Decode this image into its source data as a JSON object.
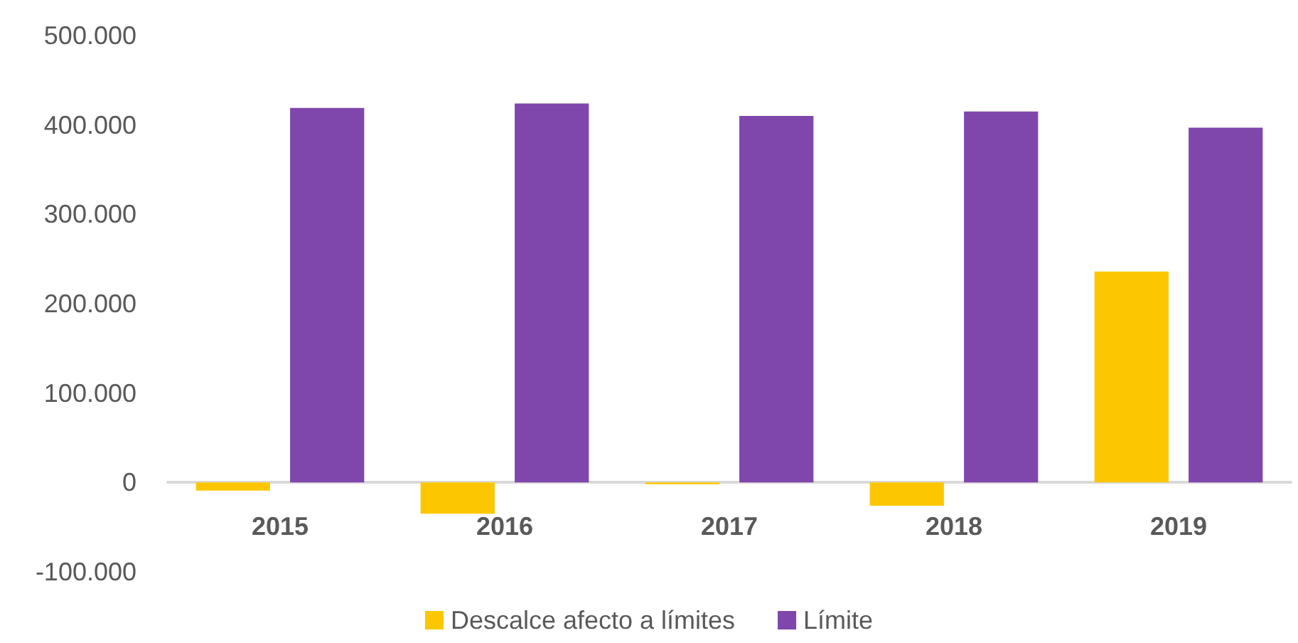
{
  "chart_data": {
    "type": "bar",
    "categories": [
      "2015",
      "2016",
      "2017",
      "2018",
      "2019"
    ],
    "series": [
      {
        "name": "Descalce afecto a límites",
        "color": "#fcc700",
        "values": [
          -9000,
          -35000,
          -2000,
          -26000,
          236000
        ]
      },
      {
        "name": "Límite",
        "color": "#7f47ab",
        "values": [
          419000,
          424000,
          410000,
          415000,
          397000
        ]
      }
    ],
    "ylim": [
      -100000,
      500000
    ],
    "yticks": [
      {
        "value": -100000,
        "label": "-100.000"
      },
      {
        "value": 0,
        "label": "0"
      },
      {
        "value": 100000,
        "label": "100.000"
      },
      {
        "value": 200000,
        "label": "200.000"
      },
      {
        "value": 300000,
        "label": "300.000"
      },
      {
        "value": 400000,
        "label": "400.000"
      },
      {
        "value": 500000,
        "label": "500.000"
      }
    ],
    "grid": false,
    "legend": "bottom"
  }
}
